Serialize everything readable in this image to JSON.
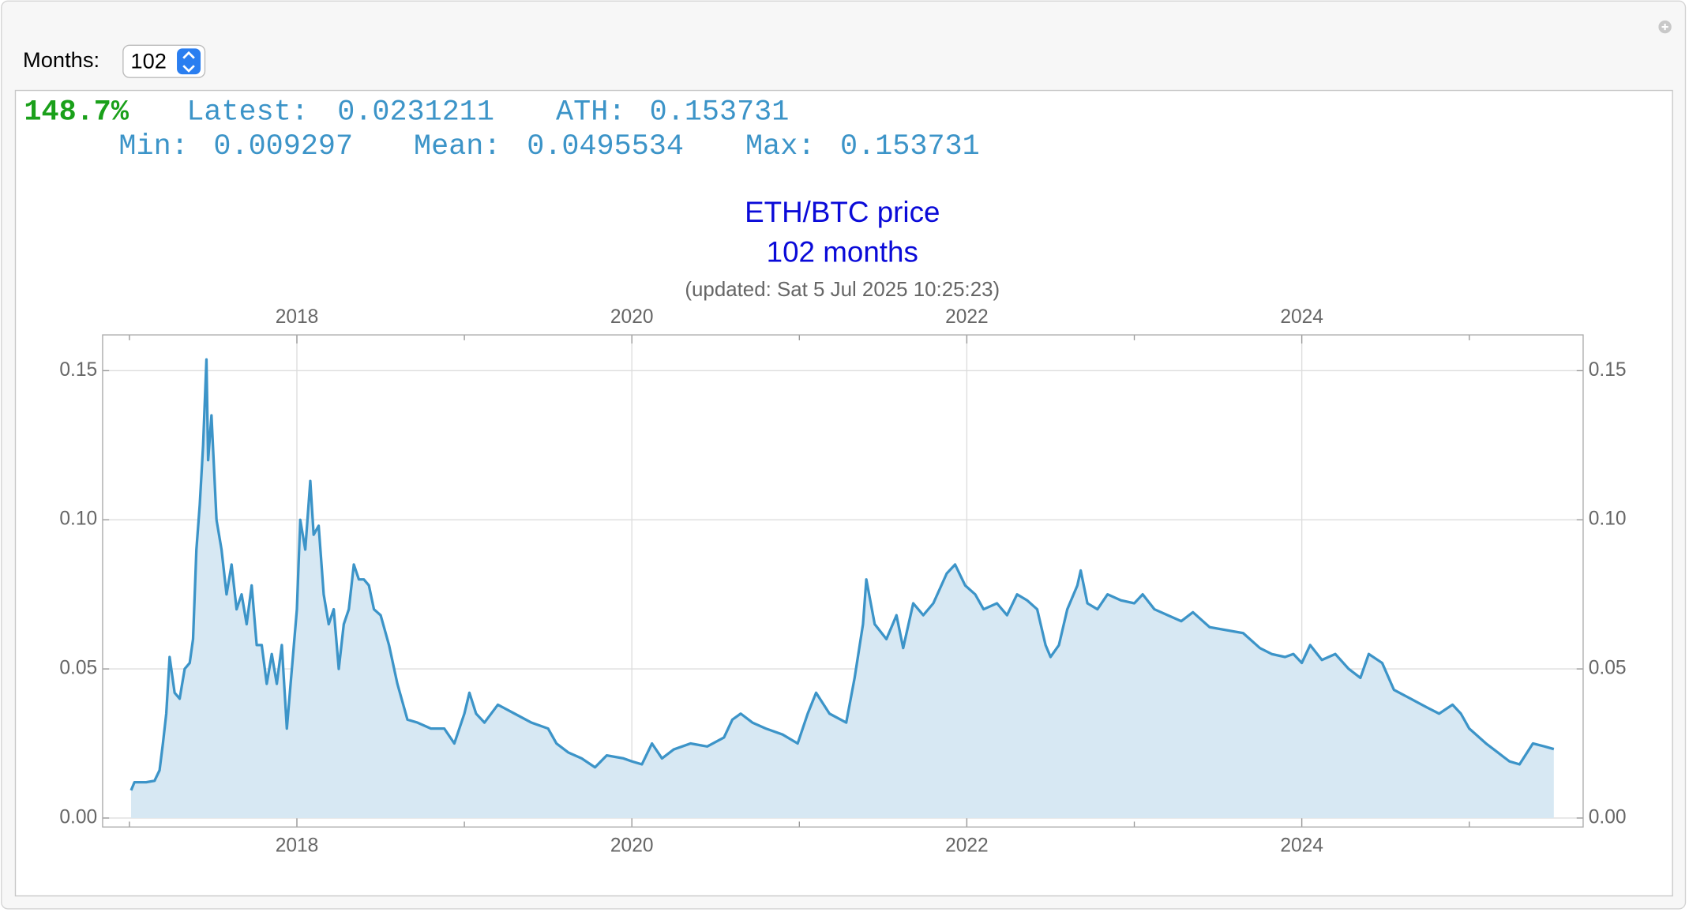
{
  "controls": {
    "label": "Months:",
    "selected": "102"
  },
  "stats": {
    "change": "148.7%",
    "latest_label": "Latest:",
    "latest": 0.0231211,
    "ath_label": "ATH:",
    "ath": 0.153731,
    "min_label": "Min:",
    "min": 0.009297,
    "mean_label": "Mean:",
    "mean": 0.0495534,
    "max_label": "Max:",
    "max": 0.153731
  },
  "chart_data": {
    "type": "line",
    "title": "ETH/BTC price",
    "subtitle": "102 months",
    "note": "(updated: Sat 5 Jul 2025 10:25:23)",
    "fill": true,
    "fill_color": "#d7e8f3",
    "grid": true,
    "xlim": [
      2016.84,
      2025.68
    ],
    "xticks": [
      2018,
      2020,
      2022,
      2024
    ],
    "xminorticks": [
      2017,
      2019,
      2021,
      2023,
      2025
    ],
    "ylim": [
      -0.003,
      0.162
    ],
    "yticks": [
      {
        "value": 0,
        "label": "0.00"
      },
      0.05,
      {
        "value": 0.1,
        "label": "0.10"
      },
      0.15
    ],
    "x": [
      2017.01,
      2017.03,
      2017.1,
      2017.15,
      2017.18,
      2017.2,
      2017.22,
      2017.24,
      2017.27,
      2017.3,
      2017.33,
      2017.36,
      2017.38,
      2017.4,
      2017.42,
      2017.44,
      2017.46,
      2017.47,
      2017.49,
      2017.52,
      2017.55,
      2017.58,
      2017.61,
      2017.64,
      2017.67,
      2017.7,
      2017.73,
      2017.76,
      2017.79,
      2017.82,
      2017.85,
      2017.88,
      2017.91,
      2017.94,
      2017.97,
      2018.0,
      2018.02,
      2018.05,
      2018.08,
      2018.1,
      2018.13,
      2018.16,
      2018.19,
      2018.22,
      2018.25,
      2018.28,
      2018.31,
      2018.34,
      2018.37,
      2018.4,
      2018.43,
      2018.46,
      2018.5,
      2018.55,
      2018.6,
      2018.66,
      2018.72,
      2018.8,
      2018.88,
      2018.94,
      2019.0,
      2019.03,
      2019.07,
      2019.12,
      2019.2,
      2019.3,
      2019.4,
      2019.5,
      2019.55,
      2019.62,
      2019.7,
      2019.78,
      2019.85,
      2019.95,
      2020.0,
      2020.06,
      2020.12,
      2020.18,
      2020.25,
      2020.35,
      2020.45,
      2020.55,
      2020.6,
      2020.65,
      2020.72,
      2020.8,
      2020.9,
      2020.99,
      2021.05,
      2021.1,
      2021.18,
      2021.28,
      2021.33,
      2021.38,
      2021.4,
      2021.45,
      2021.52,
      2021.58,
      2021.62,
      2021.68,
      2021.74,
      2021.8,
      2021.88,
      2021.93,
      2021.99,
      2022.05,
      2022.1,
      2022.18,
      2022.24,
      2022.3,
      2022.36,
      2022.42,
      2022.47,
      2022.5,
      2022.55,
      2022.6,
      2022.66,
      2022.68,
      2022.72,
      2022.78,
      2022.84,
      2022.92,
      2023.0,
      2023.05,
      2023.12,
      2023.2,
      2023.28,
      2023.35,
      2023.45,
      2023.55,
      2023.65,
      2023.75,
      2023.82,
      2023.9,
      2023.95,
      2024.0,
      2024.05,
      2024.12,
      2024.2,
      2024.28,
      2024.35,
      2024.4,
      2024.48,
      2024.55,
      2024.65,
      2024.75,
      2024.82,
      2024.9,
      2024.95,
      2025.0,
      2025.1,
      2025.17,
      2025.24,
      2025.3,
      2025.38,
      2025.45,
      2025.505
    ],
    "series": [
      {
        "color": "#3c94c8",
        "values": [
          0.009297,
          0.012,
          0.012,
          0.0125,
          0.016,
          0.025,
          0.035,
          0.054,
          0.042,
          0.04,
          0.05,
          0.052,
          0.06,
          0.09,
          0.105,
          0.125,
          0.153731,
          0.12,
          0.135,
          0.1,
          0.09,
          0.075,
          0.085,
          0.07,
          0.075,
          0.065,
          0.078,
          0.058,
          0.058,
          0.045,
          0.055,
          0.045,
          0.058,
          0.03,
          0.05,
          0.07,
          0.1,
          0.09,
          0.113,
          0.095,
          0.098,
          0.075,
          0.065,
          0.07,
          0.05,
          0.065,
          0.07,
          0.085,
          0.08,
          0.08,
          0.078,
          0.07,
          0.068,
          0.058,
          0.045,
          0.033,
          0.032,
          0.03,
          0.03,
          0.025,
          0.035,
          0.042,
          0.035,
          0.032,
          0.038,
          0.035,
          0.032,
          0.03,
          0.025,
          0.022,
          0.02,
          0.017,
          0.021,
          0.02,
          0.019,
          0.018,
          0.025,
          0.02,
          0.023,
          0.025,
          0.024,
          0.027,
          0.033,
          0.035,
          0.032,
          0.03,
          0.028,
          0.025,
          0.035,
          0.042,
          0.035,
          0.032,
          0.047,
          0.065,
          0.08,
          0.065,
          0.06,
          0.068,
          0.057,
          0.072,
          0.068,
          0.072,
          0.082,
          0.085,
          0.078,
          0.075,
          0.07,
          0.072,
          0.068,
          0.075,
          0.073,
          0.07,
          0.058,
          0.054,
          0.058,
          0.07,
          0.078,
          0.083,
          0.072,
          0.07,
          0.075,
          0.073,
          0.072,
          0.075,
          0.07,
          0.068,
          0.066,
          0.069,
          0.064,
          0.063,
          0.062,
          0.057,
          0.055,
          0.054,
          0.055,
          0.052,
          0.058,
          0.053,
          0.055,
          0.05,
          0.047,
          0.055,
          0.052,
          0.043,
          0.04,
          0.037,
          0.035,
          0.038,
          0.035,
          0.03,
          0.025,
          0.022,
          0.019,
          0.018,
          0.025,
          0.024,
          0.0231211
        ]
      }
    ]
  }
}
